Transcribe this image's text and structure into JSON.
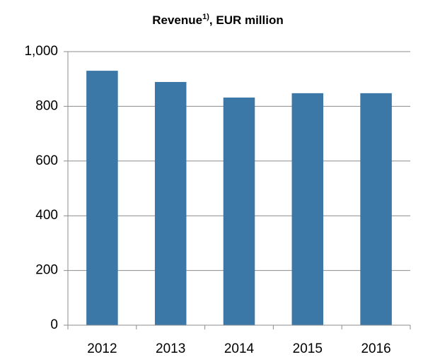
{
  "chart_data": {
    "type": "bar",
    "title": "Revenue",
    "title_superscript": "1)",
    "title_suffix": ", EUR million",
    "categories": [
      "2012",
      "2013",
      "2014",
      "2015",
      "2016"
    ],
    "values": [
      930,
      889,
      832,
      848,
      848
    ],
    "color": "#3b77a7",
    "ylim": [
      0,
      1000
    ],
    "yticks": [
      0,
      200,
      400,
      600,
      800,
      {
        "value": 1000,
        "label": "1,000"
      }
    ],
    "grid": true
  }
}
